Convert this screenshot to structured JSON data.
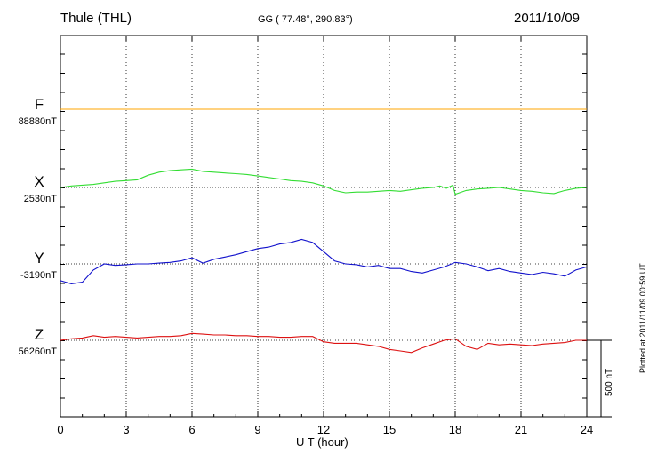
{
  "header": {
    "station": "Thule (THL)",
    "coords": "GG ( 77.48°, 290.83°)",
    "date": "2011/10/09"
  },
  "footer": {
    "plotted": "Plotted at 2011/11/09 00:59 UT",
    "scale_label": "500 nT"
  },
  "chart_data": {
    "type": "line",
    "title": "Thule (THL)",
    "xlabel": "U T (hour)",
    "ylabel": "",
    "xlim": [
      0,
      24
    ],
    "xticks": [
      0,
      3,
      6,
      9,
      12,
      15,
      18,
      21,
      24
    ],
    "grid": true,
    "scale_bar_nT": 500,
    "colors": {
      "F": "#ffa500",
      "X": "#33dd33",
      "Y": "#1111cc",
      "Z": "#dd1111"
    },
    "series": [
      {
        "name": "F",
        "baseline_label": "88880nT",
        "x": [
          0,
          24
        ],
        "values": [
          0,
          0
        ]
      },
      {
        "name": "X",
        "baseline_label": "2530nT",
        "x": [
          0,
          0.5,
          1,
          1.5,
          2,
          2.5,
          3,
          3.5,
          4,
          4.5,
          5,
          5.5,
          6,
          6.5,
          7,
          7.5,
          8,
          8.5,
          9,
          9.5,
          10,
          10.5,
          11,
          11.5,
          12,
          12.5,
          13,
          13.5,
          14,
          14.5,
          15,
          15.5,
          16,
          16.5,
          17,
          17.3,
          17.6,
          17.9,
          18,
          18.5,
          19,
          19.5,
          20,
          20.5,
          21,
          21.5,
          22,
          22.5,
          23,
          23.5,
          24
        ],
        "values": [
          0,
          10,
          15,
          20,
          30,
          40,
          45,
          50,
          80,
          100,
          110,
          115,
          120,
          105,
          100,
          95,
          90,
          85,
          75,
          65,
          55,
          45,
          40,
          30,
          10,
          -20,
          -35,
          -30,
          -30,
          -25,
          -20,
          -25,
          -15,
          -5,
          0,
          10,
          -5,
          15,
          -45,
          -20,
          -10,
          -5,
          0,
          -10,
          -20,
          -25,
          -35,
          -40,
          -20,
          -5,
          0
        ]
      },
      {
        "name": "Y",
        "baseline_label": "-3190nT",
        "x": [
          0,
          0.5,
          1,
          1.5,
          2,
          2.5,
          3,
          3.5,
          4,
          4.5,
          5,
          5.5,
          6,
          6.5,
          7,
          7.5,
          8,
          8.5,
          9,
          9.5,
          10,
          10.5,
          11,
          11.5,
          12,
          12.5,
          13,
          13.5,
          14,
          14.5,
          15,
          15.5,
          16,
          16.5,
          17,
          17.5,
          18,
          18.5,
          19,
          19.5,
          20,
          20.5,
          21,
          21.5,
          22,
          22.5,
          23,
          23.5,
          24
        ],
        "values": [
          -110,
          -130,
          -120,
          -40,
          0,
          -10,
          -5,
          0,
          0,
          5,
          10,
          20,
          40,
          5,
          30,
          45,
          60,
          80,
          100,
          110,
          130,
          140,
          160,
          140,
          80,
          20,
          0,
          -5,
          -20,
          -10,
          -30,
          -30,
          -50,
          -60,
          -40,
          -20,
          10,
          0,
          -20,
          -45,
          -30,
          -50,
          -60,
          -70,
          -55,
          -65,
          -80,
          -40,
          -20
        ]
      },
      {
        "name": "Z",
        "baseline_label": "56260nT",
        "x": [
          0,
          0.5,
          1,
          1.5,
          2,
          2.5,
          3,
          3.5,
          4,
          4.5,
          5,
          5.5,
          6,
          6.5,
          7,
          7.5,
          8,
          8.5,
          9,
          9.5,
          10,
          10.5,
          11,
          11.5,
          12,
          12.5,
          13,
          13.5,
          14,
          14.5,
          15,
          15.5,
          16,
          16.5,
          17,
          17.5,
          18,
          18.5,
          19,
          19.5,
          20,
          20.5,
          21,
          21.5,
          22,
          22.5,
          23,
          23.5,
          24
        ],
        "values": [
          0,
          10,
          15,
          30,
          20,
          25,
          20,
          15,
          20,
          25,
          25,
          30,
          45,
          40,
          35,
          35,
          30,
          30,
          25,
          25,
          20,
          20,
          25,
          25,
          -10,
          -20,
          -20,
          -20,
          -30,
          -40,
          -60,
          -70,
          -80,
          -50,
          -25,
          0,
          10,
          -40,
          -60,
          -20,
          -30,
          -25,
          -30,
          -35,
          -25,
          -20,
          -15,
          0,
          0
        ]
      }
    ]
  }
}
